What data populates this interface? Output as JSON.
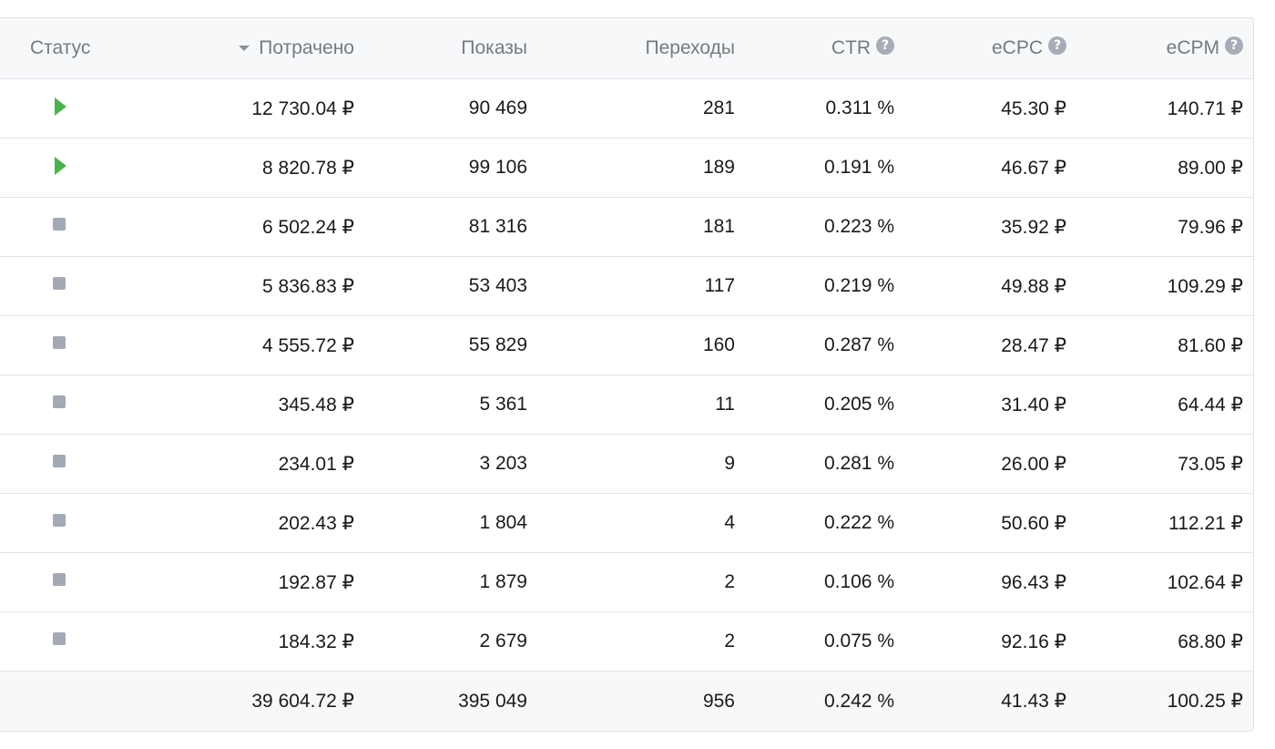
{
  "colors": {
    "active_status": "#4bb34b",
    "stopped_status": "#a3aab6",
    "header_bg": "#f7f8fa",
    "header_text": "#737b85",
    "border": "#dfe1e5"
  },
  "header": {
    "status": "Статус",
    "spent": "Потрачено",
    "shows": "Показы",
    "clicks": "Переходы",
    "ctr": "CTR",
    "ecpc": "eCPC",
    "ecpm": "eCPM",
    "help_glyph": "?",
    "sort_icon": "sort-desc-icon"
  },
  "rows": [
    {
      "status": "active",
      "spent": "12 730.04 ₽",
      "shows": "90 469",
      "clicks": "281",
      "ctr": "0.311 %",
      "ecpc": "45.30 ₽",
      "ecpm": "140.71 ₽"
    },
    {
      "status": "active",
      "spent": "8 820.78 ₽",
      "shows": "99 106",
      "clicks": "189",
      "ctr": "0.191 %",
      "ecpc": "46.67 ₽",
      "ecpm": "89.00 ₽"
    },
    {
      "status": "stopped",
      "spent": "6 502.24 ₽",
      "shows": "81 316",
      "clicks": "181",
      "ctr": "0.223 %",
      "ecpc": "35.92 ₽",
      "ecpm": "79.96 ₽"
    },
    {
      "status": "stopped",
      "spent": "5 836.83 ₽",
      "shows": "53 403",
      "clicks": "117",
      "ctr": "0.219 %",
      "ecpc": "49.88 ₽",
      "ecpm": "109.29 ₽"
    },
    {
      "status": "stopped",
      "spent": "4 555.72 ₽",
      "shows": "55 829",
      "clicks": "160",
      "ctr": "0.287 %",
      "ecpc": "28.47 ₽",
      "ecpm": "81.60 ₽"
    },
    {
      "status": "stopped",
      "spent": "345.48 ₽",
      "shows": "5 361",
      "clicks": "11",
      "ctr": "0.205 %",
      "ecpc": "31.40 ₽",
      "ecpm": "64.44 ₽"
    },
    {
      "status": "stopped",
      "spent": "234.01 ₽",
      "shows": "3 203",
      "clicks": "9",
      "ctr": "0.281 %",
      "ecpc": "26.00 ₽",
      "ecpm": "73.05 ₽"
    },
    {
      "status": "stopped",
      "spent": "202.43 ₽",
      "shows": "1 804",
      "clicks": "4",
      "ctr": "0.222 %",
      "ecpc": "50.60 ₽",
      "ecpm": "112.21 ₽"
    },
    {
      "status": "stopped",
      "spent": "192.87 ₽",
      "shows": "1 879",
      "clicks": "2",
      "ctr": "0.106 %",
      "ecpc": "96.43 ₽",
      "ecpm": "102.64 ₽"
    },
    {
      "status": "stopped",
      "spent": "184.32 ₽",
      "shows": "2 679",
      "clicks": "2",
      "ctr": "0.075 %",
      "ecpc": "92.16 ₽",
      "ecpm": "68.80 ₽"
    }
  ],
  "total": {
    "spent": "39 604.72 ₽",
    "shows": "395 049",
    "clicks": "956",
    "ctr": "0.242 %",
    "ecpc": "41.43 ₽",
    "ecpm": "100.25 ₽"
  }
}
